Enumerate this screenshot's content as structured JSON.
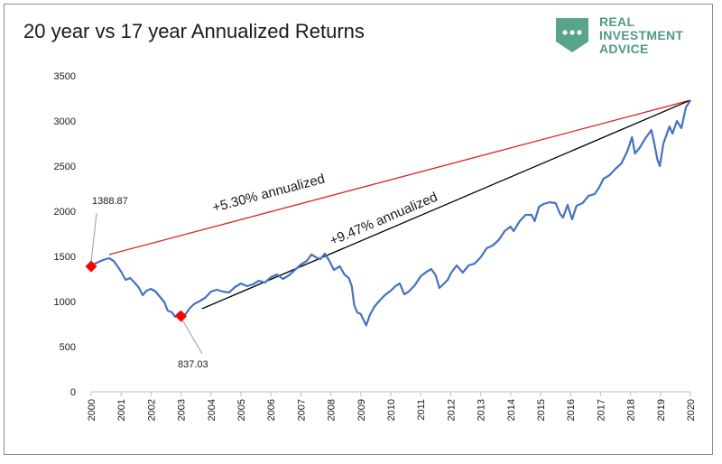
{
  "chart_data": {
    "type": "line",
    "title": "20 year vs 17 year Annualized Returns",
    "xlabel": "",
    "ylabel": "",
    "xlim": [
      2000,
      2020
    ],
    "ylim": [
      0,
      3500
    ],
    "x_ticks": [
      "2000",
      "2001",
      "2002",
      "2003",
      "2004",
      "2005",
      "2006",
      "2007",
      "2008",
      "2009",
      "2010",
      "2011",
      "2012",
      "2013",
      "2014",
      "2015",
      "2016",
      "2017",
      "2018",
      "2019",
      "2020"
    ],
    "y_ticks": [
      "0",
      "500",
      "1000",
      "1500",
      "2000",
      "2500",
      "3000",
      "3500"
    ],
    "grid": false,
    "series": [
      {
        "color": "#4472c4",
        "points": [
          [
            2000.0,
            1400
          ],
          [
            2000.2,
            1430
          ],
          [
            2000.4,
            1460
          ],
          [
            2000.6,
            1480
          ],
          [
            2000.75,
            1450
          ],
          [
            2000.9,
            1380
          ],
          [
            2001.0,
            1330
          ],
          [
            2001.15,
            1240
          ],
          [
            2001.3,
            1260
          ],
          [
            2001.45,
            1210
          ],
          [
            2001.6,
            1150
          ],
          [
            2001.72,
            1070
          ],
          [
            2001.85,
            1120
          ],
          [
            2002.0,
            1140
          ],
          [
            2002.15,
            1110
          ],
          [
            2002.3,
            1050
          ],
          [
            2002.45,
            990
          ],
          [
            2002.55,
            900
          ],
          [
            2002.7,
            880
          ],
          [
            2002.8,
            830
          ],
          [
            2002.95,
            880
          ],
          [
            2003.05,
            845
          ],
          [
            2003.15,
            860
          ],
          [
            2003.3,
            930
          ],
          [
            2003.45,
            975
          ],
          [
            2003.6,
            1000
          ],
          [
            2003.8,
            1040
          ],
          [
            2004.0,
            1110
          ],
          [
            2004.2,
            1130
          ],
          [
            2004.4,
            1110
          ],
          [
            2004.6,
            1100
          ],
          [
            2004.8,
            1160
          ],
          [
            2005.0,
            1200
          ],
          [
            2005.2,
            1170
          ],
          [
            2005.4,
            1190
          ],
          [
            2005.6,
            1230
          ],
          [
            2005.8,
            1210
          ],
          [
            2006.0,
            1270
          ],
          [
            2006.2,
            1300
          ],
          [
            2006.4,
            1250
          ],
          [
            2006.6,
            1290
          ],
          [
            2006.8,
            1350
          ],
          [
            2007.0,
            1410
          ],
          [
            2007.2,
            1450
          ],
          [
            2007.35,
            1520
          ],
          [
            2007.5,
            1490
          ],
          [
            2007.65,
            1470
          ],
          [
            2007.8,
            1530
          ],
          [
            2007.95,
            1450
          ],
          [
            2008.1,
            1350
          ],
          [
            2008.3,
            1390
          ],
          [
            2008.45,
            1300
          ],
          [
            2008.6,
            1260
          ],
          [
            2008.7,
            1170
          ],
          [
            2008.78,
            960
          ],
          [
            2008.88,
            880
          ],
          [
            2009.0,
            860
          ],
          [
            2009.1,
            790
          ],
          [
            2009.18,
            735
          ],
          [
            2009.3,
            850
          ],
          [
            2009.45,
            940
          ],
          [
            2009.6,
            1000
          ],
          [
            2009.8,
            1070
          ],
          [
            2010.0,
            1120
          ],
          [
            2010.15,
            1170
          ],
          [
            2010.3,
            1200
          ],
          [
            2010.45,
            1080
          ],
          [
            2010.6,
            1110
          ],
          [
            2010.8,
            1180
          ],
          [
            2011.0,
            1280
          ],
          [
            2011.2,
            1330
          ],
          [
            2011.35,
            1360
          ],
          [
            2011.5,
            1290
          ],
          [
            2011.62,
            1150
          ],
          [
            2011.75,
            1190
          ],
          [
            2011.9,
            1240
          ],
          [
            2012.0,
            1310
          ],
          [
            2012.2,
            1400
          ],
          [
            2012.4,
            1320
          ],
          [
            2012.6,
            1400
          ],
          [
            2012.8,
            1420
          ],
          [
            2013.0,
            1490
          ],
          [
            2013.2,
            1590
          ],
          [
            2013.4,
            1620
          ],
          [
            2013.6,
            1680
          ],
          [
            2013.8,
            1780
          ],
          [
            2014.0,
            1830
          ],
          [
            2014.1,
            1780
          ],
          [
            2014.3,
            1890
          ],
          [
            2014.5,
            1960
          ],
          [
            2014.7,
            1960
          ],
          [
            2014.8,
            1890
          ],
          [
            2014.95,
            2050
          ],
          [
            2015.1,
            2080
          ],
          [
            2015.3,
            2100
          ],
          [
            2015.5,
            2090
          ],
          [
            2015.65,
            1970
          ],
          [
            2015.75,
            1930
          ],
          [
            2015.9,
            2070
          ],
          [
            2016.05,
            1910
          ],
          [
            2016.2,
            2060
          ],
          [
            2016.4,
            2090
          ],
          [
            2016.6,
            2170
          ],
          [
            2016.8,
            2190
          ],
          [
            2016.95,
            2260
          ],
          [
            2017.1,
            2360
          ],
          [
            2017.3,
            2400
          ],
          [
            2017.5,
            2470
          ],
          [
            2017.7,
            2530
          ],
          [
            2017.9,
            2670
          ],
          [
            2018.05,
            2820
          ],
          [
            2018.15,
            2640
          ],
          [
            2018.3,
            2700
          ],
          [
            2018.5,
            2810
          ],
          [
            2018.7,
            2900
          ],
          [
            2018.8,
            2740
          ],
          [
            2018.9,
            2570
          ],
          [
            2018.98,
            2500
          ],
          [
            2019.1,
            2750
          ],
          [
            2019.3,
            2940
          ],
          [
            2019.4,
            2860
          ],
          [
            2019.55,
            3000
          ],
          [
            2019.7,
            2920
          ],
          [
            2019.85,
            3150
          ],
          [
            2020.0,
            3230
          ]
        ]
      }
    ],
    "trend_lines": [
      {
        "label": "+5.30% annualized",
        "color": "#e02020",
        "from": [
          2000.6,
          1520
        ],
        "to": [
          2020.0,
          3230
        ]
      },
      {
        "label": "+9.47% annualized",
        "color": "#000000",
        "from": [
          2003.7,
          920
        ],
        "to": [
          2020.0,
          3230
        ]
      }
    ],
    "markers": [
      {
        "x": 2000.0,
        "y": 1388.87,
        "label": "1388.87",
        "color": "#ff0000"
      },
      {
        "x": 2003.0,
        "y": 837.03,
        "label": "837.03",
        "color": "#ff0000"
      }
    ]
  },
  "logo": {
    "line1": "REAL",
    "line2": "INVESTMENT",
    "line3": "ADVICE",
    "color": "#4f9a86"
  }
}
